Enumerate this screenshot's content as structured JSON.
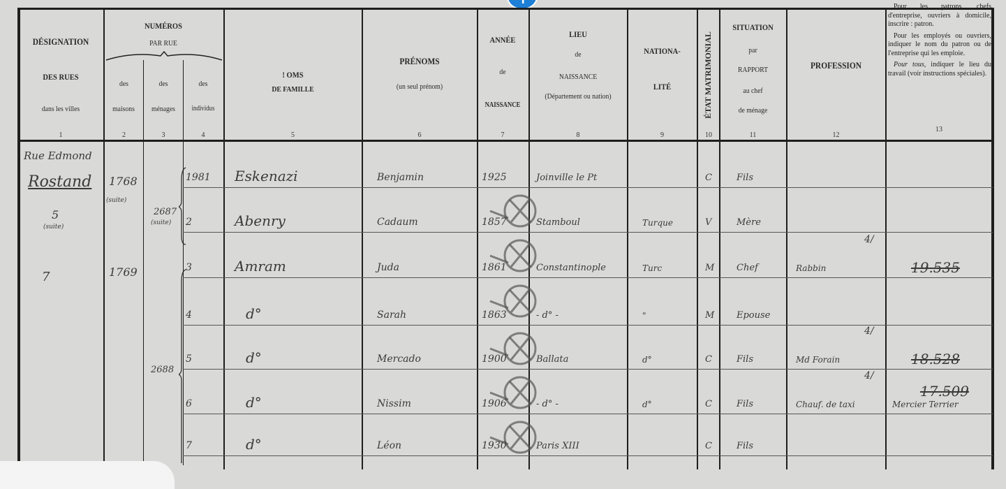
{
  "header": {
    "col1": {
      "title": "DÉSIGNATION",
      "sub1": "DES RUES",
      "sub2": "dans les villes",
      "num": "1"
    },
    "numeros": {
      "title": "NUMÉROS",
      "sub": "PAR RUE"
    },
    "col2": {
      "label": "des",
      "label2": "maisons",
      "num": "2"
    },
    "col3": {
      "label": "des",
      "label2": "ménages",
      "num": "3"
    },
    "col4": {
      "label": "des",
      "label2": "individus",
      "num": "4"
    },
    "col5": {
      "title": "! OMS",
      "sub": "DE FAMILLE",
      "num": "5"
    },
    "col6": {
      "title": "PRÉNOMS",
      "sub": "(un seul prénom)",
      "num": "6"
    },
    "col7": {
      "title": "ANNÉE",
      "sub": "de",
      "sub2": "NAISSANCE",
      "num": "7"
    },
    "col8": {
      "title": "LIEU",
      "sub": "de",
      "sub2": "NAISSANCE",
      "sub3": "(Département ou nation)",
      "num": "8"
    },
    "col9": {
      "title": "NATIONA-",
      "sub": "LITÉ",
      "num": "9"
    },
    "col10": {
      "title": "ÉTAT MATRIMONIAL",
      "num": "10"
    },
    "col11": {
      "title": "SITUATION",
      "sub": "par",
      "sub2": "RAPPORT",
      "sub3": "au chef",
      "sub4": "de ménage",
      "num": "11"
    },
    "col12": {
      "title": "PROFESSION",
      "num": "12"
    },
    "col13": {
      "p1": "Pour les patrons, chefs d'entreprise, ouvriers à domicile, inscrire : patron.",
      "p2": "Pour les employés ou ouvriers, indiquer le nom du patron ou de l'entreprise qui les emploie.",
      "p3_em": "Pour tous",
      "p3": ", indiquer le lieu du travail (voir instructions spéciales).",
      "num": "13"
    }
  },
  "entries": {
    "street": {
      "line1": "Rue Edmond",
      "line2": "Rostand",
      "line3": "5",
      "line4": "(suite)",
      "second": "7"
    },
    "houses": [
      {
        "no": "1768",
        "note": "(suite)"
      },
      {
        "no": "1769"
      }
    ],
    "households": [
      {
        "no": "2687",
        "note": "(suite)"
      },
      {
        "no": "2688"
      }
    ],
    "rows": [
      {
        "individual": "1981",
        "surname": "Eskenazi",
        "first_name": "Benjamin",
        "birth_year": "1925",
        "birthplace": "Joinville le Pt",
        "nationality": "",
        "marital": "C",
        "relation": "Fils",
        "profession": "",
        "employer": ""
      },
      {
        "individual": "2",
        "surname": "Abenry",
        "first_name": "Cadaum",
        "birth_year": "1857",
        "birthplace": "Stamboul",
        "nationality": "Turque",
        "marital": "V",
        "relation": "Mère",
        "profession": "",
        "employer": ""
      },
      {
        "individual": "3",
        "surname": "Amram",
        "first_name": "Juda",
        "birth_year": "1861",
        "birthplace": "Constantinople",
        "nationality": "Turc",
        "marital": "M",
        "relation": "Chef",
        "profession": "Rabbin",
        "employer": "19.535",
        "mark": "4/"
      },
      {
        "individual": "4",
        "surname": "d°",
        "first_name": "Sarah",
        "birth_year": "1863",
        "birthplace": "- d° -",
        "nationality": "\"",
        "marital": "M",
        "relation": "Epouse",
        "profession": "",
        "employer": ""
      },
      {
        "individual": "5",
        "surname": "d°",
        "first_name": "Mercado",
        "birth_year": "1900",
        "birthplace": "Ballata",
        "nationality": "d°",
        "marital": "C",
        "relation": "Fils",
        "profession": "Md Forain",
        "employer": "18.528",
        "mark": "4/"
      },
      {
        "individual": "6",
        "surname": "d°",
        "first_name": "Nissim",
        "birth_year": "1906",
        "birthplace": "- d° -",
        "nationality": "d°",
        "marital": "C",
        "relation": "Fils",
        "profession": "Chauf. de taxi",
        "employer": "Mercier Terrier",
        "employer_code": "17.509",
        "mark": "4/"
      },
      {
        "individual": "7",
        "surname": "d°",
        "first_name": "Léon",
        "birth_year": "1930",
        "birthplace": "Paris XIII",
        "nationality": "",
        "marital": "C",
        "relation": "Fils",
        "profession": "",
        "employer": ""
      }
    ]
  },
  "colors": {
    "paper": "#d9d9d7",
    "ink": "#1e1e1e",
    "handwriting": "#3a3a3a",
    "pencil": "#555555",
    "viewer_button": "#1d7fd6"
  }
}
